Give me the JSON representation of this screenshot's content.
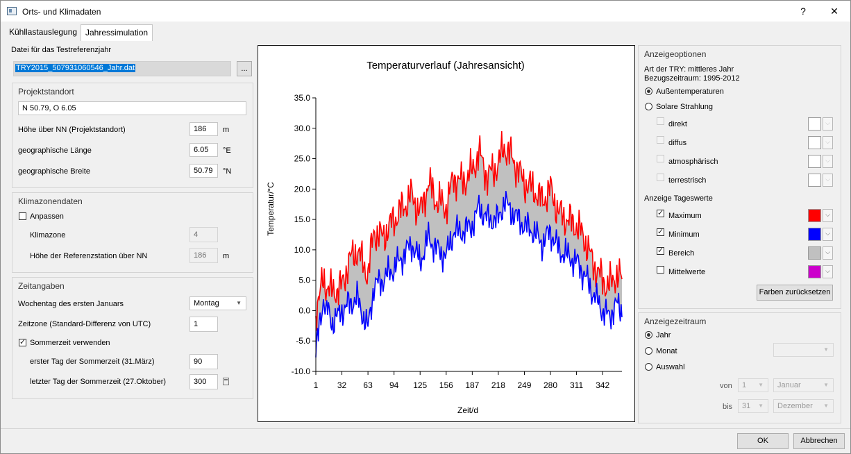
{
  "window": {
    "title": "Orts- und Klimadaten",
    "help": "?",
    "close": "✕"
  },
  "tabs": [
    {
      "label": "Kühllastauslegung"
    },
    {
      "label": "Jahressimulation"
    }
  ],
  "file": {
    "label": "Datei für das Testreferenzjahr",
    "value": "TRY2015_507931060546_Jahr.dat",
    "browse": "..."
  },
  "projekt": {
    "title": "Projektstandort",
    "location": "N 50.79, O 6.05",
    "rows": [
      {
        "label": "Höhe über NN (Projektstandort)",
        "value": "186",
        "unit": "m"
      },
      {
        "label": "geographische Länge",
        "value": "6.05",
        "unit": "°E"
      },
      {
        "label": "geographische Breite",
        "value": "50.79",
        "unit": "°N"
      }
    ]
  },
  "klima": {
    "title": "Klimazonendaten",
    "anpassen": "Anpassen",
    "zone_label": "Klimazone",
    "zone_value": "4",
    "ref_label": "Höhe der Referenzstation über NN",
    "ref_value": "186",
    "ref_unit": "m"
  },
  "zeit": {
    "title": "Zeitangaben",
    "wochentag_label": "Wochentag des ersten Januars",
    "wochentag_value": "Montag",
    "zeitzone_label": "Zeitzone (Standard-Differenz von UTC)",
    "zeitzone_value": "1",
    "sommerzeit_label": "Sommerzeit verwenden",
    "erster_label": "erster Tag der Sommerzeit (31.März)",
    "erster_value": "90",
    "letzter_label": "letzter Tag der Sommerzeit (27.Oktober)",
    "letzter_value": "300"
  },
  "chart_data": {
    "type": "area",
    "title": "Temperaturverlauf (Jahresansicht)",
    "xlabel": "Zeit/d",
    "ylabel": "Temperatur/°C",
    "ylim": [
      -10,
      35
    ],
    "xlim": [
      1,
      365
    ],
    "yticks": [
      "35.0",
      "30.0",
      "25.0",
      "20.0",
      "15.0",
      "10.0",
      "5.0",
      "0.0",
      "-5.0",
      "-10.0"
    ],
    "xticks": [
      "1",
      "32",
      "63",
      "94",
      "125",
      "156",
      "187",
      "218",
      "249",
      "280",
      "311",
      "342"
    ],
    "x": [
      1,
      10,
      20,
      32,
      40,
      50,
      63,
      70,
      80,
      94,
      105,
      115,
      125,
      135,
      145,
      156,
      165,
      175,
      187,
      195,
      205,
      218,
      225,
      235,
      249,
      260,
      270,
      280,
      290,
      300,
      311,
      320,
      330,
      342,
      350,
      358,
      365
    ],
    "series": [
      {
        "name": "Maximum",
        "color": "#ff0000",
        "values": [
          0,
          5,
          3,
          4,
          8,
          10,
          6,
          13,
          12,
          15,
          17,
          19,
          16,
          21,
          18,
          17,
          22,
          21,
          23,
          26,
          22,
          24,
          27,
          25,
          21,
          20,
          18,
          20,
          16,
          15,
          14,
          12,
          8,
          5,
          4,
          6,
          5
        ]
      },
      {
        "name": "Minimum",
        "color": "#0000ff",
        "values": [
          -7,
          2,
          -2,
          0,
          1,
          2,
          -3,
          4,
          5,
          7,
          9,
          11,
          8,
          12,
          10,
          9,
          13,
          13,
          14,
          17,
          15,
          15,
          18,
          16,
          14,
          13,
          11,
          13,
          10,
          9,
          8,
          6,
          3,
          0,
          -1,
          1,
          0
        ]
      }
    ],
    "bereich_color": "#c0c0c0"
  },
  "anzeige": {
    "title": "Anzeigeoptionen",
    "art": "Art der TRY: mittleres Jahr",
    "bezug": "Bezugszeitraum: 1995-2012",
    "radio_aussen": "Außentemperaturen",
    "radio_solar": "Solare Strahlung",
    "solar": [
      {
        "label": "direkt"
      },
      {
        "label": "diffus"
      },
      {
        "label": "atmosphärisch"
      },
      {
        "label": "terrestrisch"
      }
    ],
    "tageswerte_title": "Anzeige Tageswerte",
    "tageswerte": [
      {
        "label": "Maximum",
        "color": "#ff0000"
      },
      {
        "label": "Minimum",
        "color": "#0000ff"
      },
      {
        "label": "Bereich",
        "color": "#c0c0c0"
      },
      {
        "label": "Mittelwerte",
        "color": "#cc00cc"
      }
    ],
    "reset": "Farben zurücksetzen"
  },
  "zeitraum": {
    "title": "Anzeigezeitraum",
    "jahr": "Jahr",
    "monat": "Monat",
    "auswahl": "Auswahl",
    "von": "von",
    "bis": "bis",
    "von_tag": "1",
    "von_monat": "Januar",
    "bis_tag": "31",
    "bis_monat": "Dezember"
  },
  "footer": {
    "ok": "OK",
    "cancel": "Abbrechen"
  }
}
